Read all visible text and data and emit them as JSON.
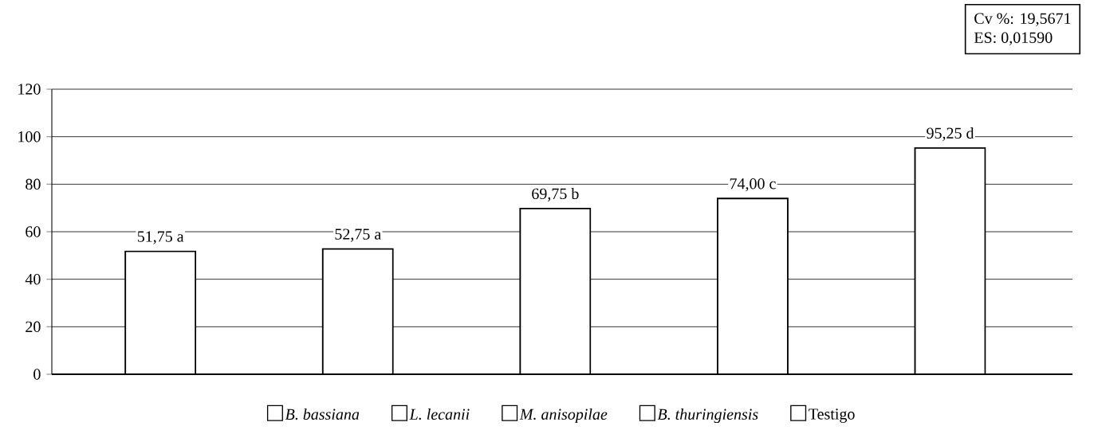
{
  "chart_data": {
    "type": "bar",
    "categories": [
      null,
      null,
      null,
      null,
      null
    ],
    "series": [
      {
        "name": "*B. bassiana*",
        "color": "#000000",
        "values": [
          51.75,
          null,
          null,
          null,
          null
        ],
        "value_labels": [
          "51,75  a",
          null,
          null,
          null,
          null
        ]
      },
      {
        "name": "*L. lecanii*",
        "color": "#000000",
        "values": [
          null,
          52.75,
          null,
          null,
          null
        ],
        "value_labels": [
          null,
          "52,75  a",
          null,
          null,
          null
        ]
      },
      {
        "name": "*M. anisopilae*",
        "color": "#000000",
        "values": [
          null,
          null,
          69.75,
          null,
          null
        ],
        "value_labels": [
          null,
          null,
          "69,75  b",
          null,
          null
        ]
      },
      {
        "name": "*B. thuringiensis*",
        "color": "#000000",
        "values": [
          null,
          null,
          null,
          74.0,
          null
        ],
        "value_labels": [
          null,
          null,
          null,
          "74,00  c",
          null
        ]
      },
      {
        "name": "Testigo",
        "color": "#000000",
        "values": [
          null,
          null,
          null,
          null,
          95.25
        ],
        "value_labels": [
          null,
          null,
          null,
          null,
          "95,25  d"
        ]
      }
    ],
    "ylim": [
      0,
      120
    ],
    "yticks": [
      0,
      20,
      40,
      60,
      80,
      100,
      120
    ],
    "grid": "y",
    "legend": "bottom",
    "annotations": [
      "Cv %: 19,5671",
      "ES: 0,01590"
    ]
  }
}
